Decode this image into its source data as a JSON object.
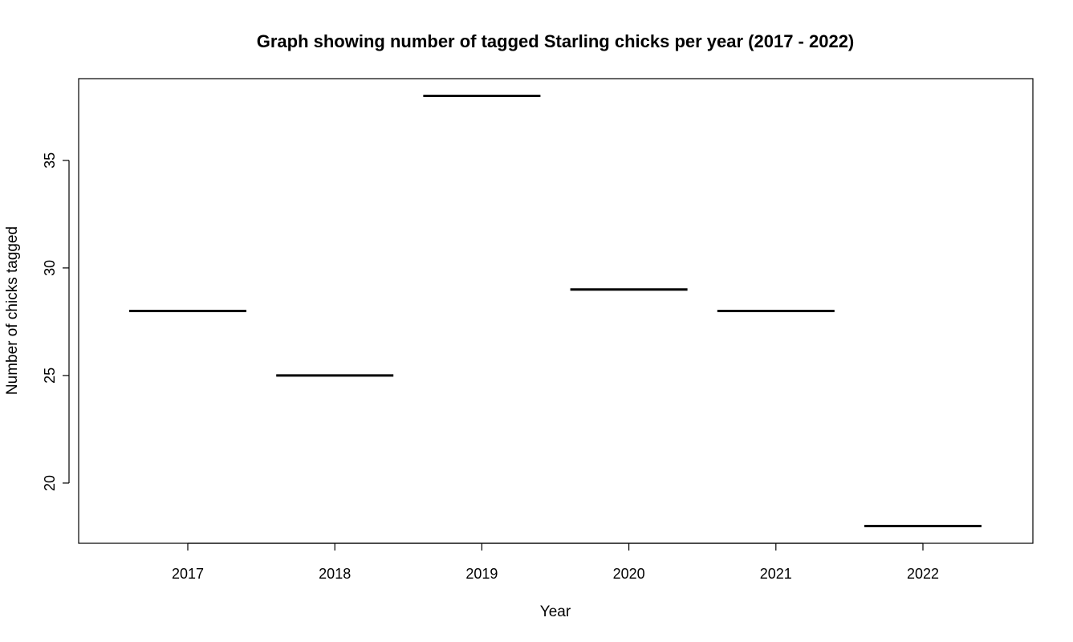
{
  "chart_data": {
    "type": "bar",
    "title": "Graph showing number of tagged Starling chicks per year (2017 - 2022)",
    "xlabel": "Year",
    "ylabel": "Number of chicks tagged",
    "categories": [
      "2017",
      "2018",
      "2019",
      "2020",
      "2021",
      "2022"
    ],
    "values": [
      28,
      25,
      38,
      29,
      28,
      18
    ],
    "ylim": [
      17.2,
      38.8
    ],
    "yticks": [
      20,
      25,
      30,
      35
    ],
    "grid": false,
    "legend": "none",
    "colors": {
      "line": "#000000",
      "background": "#ffffff"
    }
  }
}
